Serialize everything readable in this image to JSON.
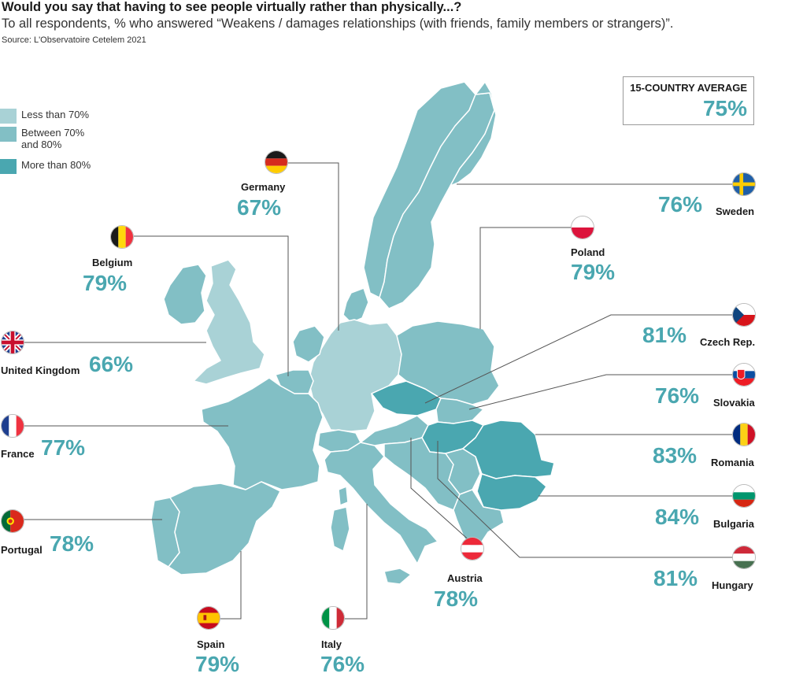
{
  "header": {
    "title": "Would you say that having to see people virtually rather than physically...?",
    "subtitle": "To all respondents, % who answered “Weakens / damages relationships (with friends, family members or strangers)”.",
    "source": "Source: L'Observatoire Cetelem 2021"
  },
  "legend": {
    "items": [
      {
        "label": "Less than 70%",
        "color": "#a9d2d6"
      },
      {
        "label_line1": "Between 70%",
        "label_line2": "and 80%",
        "color": "#82bfc5"
      },
      {
        "label": "More than 80%",
        "color": "#4aa7b0"
      }
    ]
  },
  "average": {
    "label": "15-COUNTRY AVERAGE",
    "value": "75%"
  },
  "countries": {
    "germany": {
      "name": "Germany",
      "value": "67%",
      "flag": "germany-flag-icon"
    },
    "belgium": {
      "name": "Belgium",
      "value": "79%",
      "flag": "belgium-flag-icon"
    },
    "uk": {
      "name": "United Kingdom",
      "value": "66%",
      "flag": "uk-flag-icon"
    },
    "france": {
      "name": "France",
      "value": "77%",
      "flag": "france-flag-icon"
    },
    "portugal": {
      "name": "Portugal",
      "value": "78%",
      "flag": "portugal-flag-icon"
    },
    "spain": {
      "name": "Spain",
      "value": "79%",
      "flag": "spain-flag-icon"
    },
    "italy": {
      "name": "Italy",
      "value": "76%",
      "flag": "italy-flag-icon"
    },
    "austria": {
      "name": "Austria",
      "value": "78%",
      "flag": "austria-flag-icon"
    },
    "sweden": {
      "name": "Sweden",
      "value": "76%",
      "flag": "sweden-flag-icon"
    },
    "poland": {
      "name": "Poland",
      "value": "79%",
      "flag": "poland-flag-icon"
    },
    "czech": {
      "name": "Czech Rep.",
      "value": "81%",
      "flag": "czech-flag-icon"
    },
    "slovakia": {
      "name": "Slovakia",
      "value": "76%",
      "flag": "slovakia-flag-icon"
    },
    "romania": {
      "name": "Romania",
      "value": "83%",
      "flag": "romania-flag-icon"
    },
    "bulgaria": {
      "name": "Bulgaria",
      "value": "84%",
      "flag": "bulgaria-flag-icon"
    },
    "hungary": {
      "name": "Hungary",
      "value": "81%",
      "flag": "hungary-flag-icon"
    }
  },
  "colors": {
    "low": "#a9d2d6",
    "mid": "#82bfc5",
    "high": "#4aa7b0",
    "other_land": "#82bfc5",
    "border": "#ffffff",
    "leader": "#555555"
  }
}
